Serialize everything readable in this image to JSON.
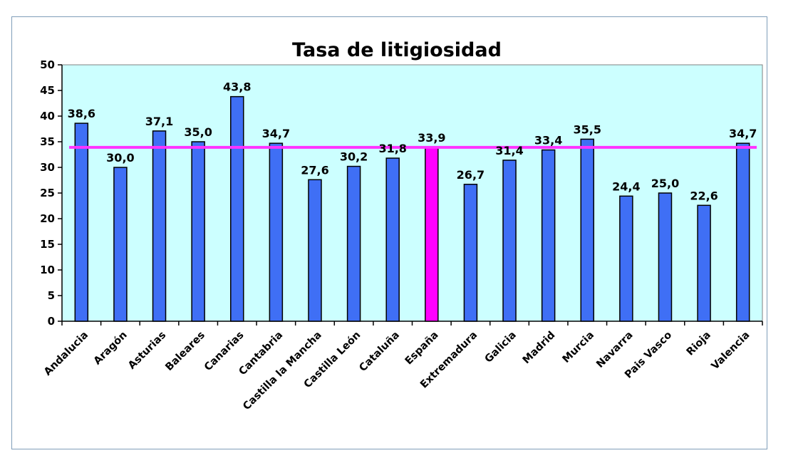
{
  "chart_data": {
    "type": "bar",
    "title": "Tasa de litigiosidad",
    "xlabel": "",
    "ylabel": "",
    "ylim": [
      0,
      50
    ],
    "yticks": [
      0,
      5,
      10,
      15,
      20,
      25,
      30,
      35,
      40,
      45,
      50
    ],
    "categories": [
      "Andalucia",
      "Aragón",
      "Asturias",
      "Baleares",
      "Canarias",
      "Cantabria",
      "Castilla la Mancha",
      "Castilla León",
      "Cataluña",
      "España",
      "Extremadura",
      "Galicia",
      "Madrid",
      "Murcia",
      "Navarra",
      "Pais Vasco",
      "Rioja",
      "Valencia"
    ],
    "values": [
      38.6,
      30.0,
      37.1,
      35.0,
      43.8,
      34.7,
      27.6,
      30.2,
      31.8,
      33.9,
      26.7,
      31.4,
      33.4,
      35.5,
      24.4,
      25.0,
      22.6,
      34.7
    ],
    "value_labels": [
      "38,6",
      "30,0",
      "37,1",
      "35,0",
      "43,8",
      "34,7",
      "27,6",
      "30,2",
      "31,8",
      "33,9",
      "26,7",
      "31,4",
      "33,4",
      "35,5",
      "24,4",
      "25,0",
      "22,6",
      "34,7"
    ],
    "highlight_category": "España",
    "reference_line": {
      "value": 33.9
    },
    "colors": {
      "bar": "#3f6ff5",
      "highlight": "#ff00ff",
      "reference_line": "#ff33ff",
      "plot_background": "#ccffff"
    }
  }
}
